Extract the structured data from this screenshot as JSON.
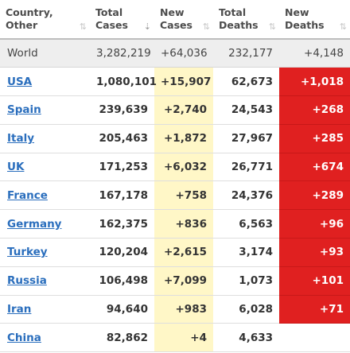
{
  "headers": [
    {
      "line1": "Country,",
      "line2": "Other",
      "sort": "⇅",
      "active": false
    },
    {
      "line1": "Total",
      "line2": "Cases",
      "sort": "⇣",
      "active": true
    },
    {
      "line1": "New",
      "line2": "Cases",
      "sort": "⇅",
      "active": false
    },
    {
      "line1": "Total",
      "line2": "Deaths",
      "sort": "⇅",
      "active": false
    },
    {
      "line1": "New",
      "line2": "Deaths",
      "sort": "⇅",
      "active": false
    }
  ],
  "world": {
    "name": "World",
    "total_cases": "3,282,219",
    "new_cases": "+64,036",
    "total_deaths": "232,177",
    "new_deaths": "+4,148"
  },
  "rows": [
    {
      "name": "USA",
      "total_cases": "1,080,101",
      "new_cases": "+15,907",
      "total_deaths": "62,673",
      "new_deaths": "+1,018"
    },
    {
      "name": "Spain",
      "total_cases": "239,639",
      "new_cases": "+2,740",
      "total_deaths": "24,543",
      "new_deaths": "+268"
    },
    {
      "name": "Italy",
      "total_cases": "205,463",
      "new_cases": "+1,872",
      "total_deaths": "27,967",
      "new_deaths": "+285"
    },
    {
      "name": "UK",
      "total_cases": "171,253",
      "new_cases": "+6,032",
      "total_deaths": "26,771",
      "new_deaths": "+674"
    },
    {
      "name": "France",
      "total_cases": "167,178",
      "new_cases": "+758",
      "total_deaths": "24,376",
      "new_deaths": "+289"
    },
    {
      "name": "Germany",
      "total_cases": "162,375",
      "new_cases": "+836",
      "total_deaths": "6,563",
      "new_deaths": "+96"
    },
    {
      "name": "Turkey",
      "total_cases": "120,204",
      "new_cases": "+2,615",
      "total_deaths": "3,174",
      "new_deaths": "+93"
    },
    {
      "name": "Russia",
      "total_cases": "106,498",
      "new_cases": "+7,099",
      "total_deaths": "1,073",
      "new_deaths": "+101"
    },
    {
      "name": "Iran",
      "total_cases": "94,640",
      "new_cases": "+983",
      "total_deaths": "6,028",
      "new_deaths": "+71"
    },
    {
      "name": "China",
      "total_cases": "82,862",
      "new_cases": "+4",
      "total_deaths": "4,633",
      "new_deaths": ""
    }
  ],
  "colors": {
    "link": "#2a6ebd",
    "new_cases_bg": "#fff7c7",
    "new_deaths_bg": "#e02020",
    "world_bg": "#eeeeee"
  }
}
